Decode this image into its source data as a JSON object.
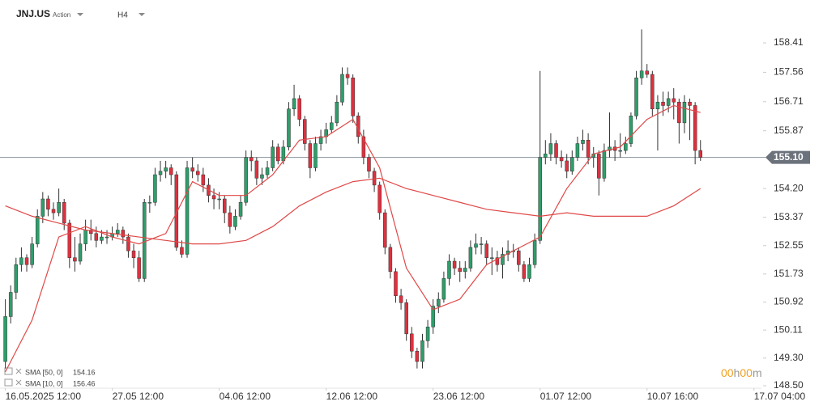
{
  "chart_data": {
    "type": "candlestick",
    "title": "JNJ.US",
    "subtitle": "Action",
    "timeframe": "H4",
    "up_color": "#2e9e6b",
    "down_color": "#e0303e",
    "candles": [
      [
        149.2,
        151.0,
        149.0,
        150.5
      ],
      [
        150.5,
        151.4,
        150.3,
        151.2
      ],
      [
        151.2,
        152.2,
        151.0,
        152.0
      ],
      [
        152.0,
        152.5,
        151.8,
        152.2
      ],
      [
        152.2,
        152.3,
        151.8,
        152.0
      ],
      [
        152.0,
        152.8,
        151.9,
        152.6
      ],
      [
        152.6,
        153.6,
        152.5,
        153.4
      ],
      [
        153.4,
        154.1,
        153.2,
        153.9
      ],
      [
        153.9,
        154.0,
        153.4,
        153.6
      ],
      [
        153.6,
        153.8,
        153.3,
        153.5
      ],
      [
        153.5,
        154.2,
        153.4,
        153.8
      ],
      [
        153.8,
        153.9,
        153.0,
        153.2
      ],
      [
        153.2,
        153.3,
        151.9,
        152.2
      ],
      [
        152.2,
        152.8,
        151.8,
        152.1
      ],
      [
        152.1,
        152.9,
        152.0,
        152.6
      ],
      [
        152.6,
        153.3,
        152.4,
        153.0
      ],
      [
        153.0,
        153.3,
        152.7,
        152.9
      ],
      [
        152.9,
        153.1,
        152.5,
        152.7
      ],
      [
        152.7,
        153.0,
        152.6,
        152.8
      ],
      [
        152.8,
        153.0,
        152.6,
        152.8
      ],
      [
        152.8,
        153.1,
        152.7,
        152.9
      ],
      [
        152.9,
        153.2,
        152.8,
        153.0
      ],
      [
        153.0,
        153.1,
        152.6,
        152.8
      ],
      [
        152.8,
        152.9,
        152.2,
        152.4
      ],
      [
        152.4,
        152.6,
        151.9,
        152.2
      ],
      [
        152.2,
        152.4,
        151.5,
        151.6
      ],
      [
        151.6,
        153.9,
        151.5,
        153.8
      ],
      [
        153.8,
        154.0,
        153.5,
        153.8
      ],
      [
        153.8,
        154.8,
        153.7,
        154.6
      ],
      [
        154.6,
        155.0,
        154.4,
        154.7
      ],
      [
        154.7,
        155.0,
        154.5,
        154.8
      ],
      [
        154.8,
        154.9,
        154.3,
        154.6
      ],
      [
        154.6,
        154.7,
        152.4,
        152.5
      ],
      [
        152.5,
        152.7,
        152.2,
        152.3
      ],
      [
        152.3,
        155.0,
        152.2,
        154.8
      ],
      [
        154.8,
        155.1,
        154.5,
        154.7
      ],
      [
        154.7,
        154.9,
        154.4,
        154.6
      ],
      [
        154.6,
        154.8,
        154.1,
        154.3
      ],
      [
        154.3,
        154.5,
        153.8,
        154.0
      ],
      [
        154.0,
        154.2,
        153.6,
        153.9
      ],
      [
        153.9,
        154.1,
        153.6,
        153.9
      ],
      [
        153.9,
        154.0,
        153.2,
        153.5
      ],
      [
        153.5,
        153.7,
        152.9,
        153.1
      ],
      [
        153.1,
        153.6,
        153.0,
        153.4
      ],
      [
        153.4,
        154.0,
        153.3,
        153.8
      ],
      [
        153.8,
        155.3,
        153.7,
        155.1
      ],
      [
        155.1,
        155.3,
        154.7,
        155.0
      ],
      [
        155.0,
        155.1,
        154.3,
        154.5
      ],
      [
        154.5,
        154.8,
        154.3,
        154.6
      ],
      [
        154.6,
        155.0,
        154.5,
        154.8
      ],
      [
        154.8,
        155.6,
        154.7,
        155.4
      ],
      [
        155.4,
        155.5,
        154.9,
        155.0
      ],
      [
        155.0,
        155.6,
        154.9,
        155.4
      ],
      [
        155.4,
        156.7,
        155.3,
        156.5
      ],
      [
        156.5,
        157.2,
        156.3,
        156.8
      ],
      [
        156.8,
        156.9,
        156.0,
        156.2
      ],
      [
        156.2,
        156.3,
        155.3,
        155.5
      ],
      [
        155.5,
        155.6,
        154.5,
        154.8
      ],
      [
        154.8,
        155.7,
        154.7,
        155.5
      ],
      [
        155.5,
        155.9,
        155.3,
        155.7
      ],
      [
        155.7,
        156.1,
        155.5,
        155.9
      ],
      [
        155.9,
        156.3,
        155.8,
        156.1
      ],
      [
        156.1,
        156.9,
        156.0,
        156.7
      ],
      [
        156.7,
        157.7,
        156.6,
        157.5
      ],
      [
        157.5,
        157.7,
        157.2,
        157.4
      ],
      [
        157.4,
        157.5,
        156.1,
        156.3
      ],
      [
        156.3,
        156.4,
        155.5,
        155.7
      ],
      [
        155.7,
        155.9,
        154.9,
        155.1
      ],
      [
        155.1,
        155.2,
        154.5,
        154.7
      ],
      [
        154.7,
        154.8,
        154.1,
        154.3
      ],
      [
        154.3,
        154.4,
        153.3,
        153.5
      ],
      [
        153.5,
        153.6,
        152.3,
        152.5
      ],
      [
        152.5,
        152.6,
        151.6,
        151.8
      ],
      [
        151.8,
        151.9,
        150.9,
        151.1
      ],
      [
        151.1,
        151.3,
        150.7,
        150.9
      ],
      [
        150.9,
        151.0,
        149.8,
        150.0
      ],
      [
        150.0,
        150.2,
        149.3,
        149.5
      ],
      [
        149.5,
        149.6,
        149.0,
        149.2
      ],
      [
        149.2,
        150.0,
        149.0,
        149.8
      ],
      [
        149.8,
        150.4,
        149.6,
        150.2
      ],
      [
        150.2,
        151.0,
        150.0,
        150.8
      ],
      [
        150.8,
        151.2,
        150.6,
        151.0
      ],
      [
        151.0,
        151.8,
        150.9,
        151.6
      ],
      [
        151.6,
        152.3,
        151.4,
        152.1
      ],
      [
        152.1,
        152.2,
        151.7,
        151.9
      ],
      [
        151.9,
        152.1,
        151.5,
        151.8
      ],
      [
        151.8,
        152.1,
        151.6,
        151.9
      ],
      [
        151.9,
        152.7,
        151.8,
        152.5
      ],
      [
        152.5,
        152.9,
        152.3,
        152.6
      ],
      [
        152.6,
        152.8,
        152.3,
        152.6
      ],
      [
        152.6,
        152.7,
        152.0,
        152.2
      ],
      [
        152.2,
        152.5,
        151.7,
        152.2
      ],
      [
        152.2,
        152.4,
        151.8,
        152.0
      ],
      [
        152.0,
        152.5,
        151.6,
        152.3
      ],
      [
        152.3,
        152.7,
        152.1,
        152.4
      ],
      [
        152.4,
        152.6,
        152.2,
        152.4
      ],
      [
        152.4,
        152.5,
        151.8,
        152.0
      ],
      [
        152.0,
        152.1,
        151.5,
        151.6
      ],
      [
        151.6,
        152.2,
        151.5,
        152.0
      ],
      [
        152.0,
        152.9,
        151.9,
        152.7
      ],
      [
        152.7,
        157.6,
        152.6,
        155.1
      ],
      [
        155.1,
        155.6,
        154.9,
        155.2
      ],
      [
        155.2,
        155.8,
        155.0,
        155.5
      ],
      [
        155.5,
        155.6,
        154.9,
        155.1
      ],
      [
        155.1,
        155.3,
        154.8,
        155.0
      ],
      [
        155.0,
        155.2,
        154.5,
        154.7
      ],
      [
        154.7,
        155.3,
        154.6,
        155.1
      ],
      [
        155.1,
        155.7,
        155.0,
        155.5
      ],
      [
        155.5,
        155.9,
        155.3,
        155.6
      ],
      [
        155.6,
        155.8,
        154.9,
        155.1
      ],
      [
        155.1,
        155.4,
        154.8,
        155.2
      ],
      [
        155.2,
        155.3,
        154.0,
        154.5
      ],
      [
        154.5,
        155.5,
        154.4,
        155.3
      ],
      [
        155.3,
        156.4,
        155.1,
        155.4
      ],
      [
        155.4,
        155.6,
        155.0,
        155.3
      ],
      [
        155.3,
        155.8,
        155.1,
        155.3
      ],
      [
        155.3,
        155.7,
        155.2,
        155.5
      ],
      [
        155.5,
        156.4,
        155.4,
        156.3
      ],
      [
        156.3,
        157.6,
        156.2,
        157.4
      ],
      [
        157.4,
        158.8,
        157.2,
        157.6
      ],
      [
        157.6,
        157.8,
        157.4,
        157.5
      ],
      [
        157.5,
        157.6,
        156.3,
        156.5
      ],
      [
        156.5,
        156.9,
        155.3,
        156.7
      ],
      [
        156.7,
        157.0,
        156.3,
        156.6
      ],
      [
        156.6,
        157.0,
        156.4,
        156.8
      ],
      [
        156.8,
        157.1,
        156.2,
        156.7
      ],
      [
        156.7,
        156.8,
        155.5,
        156.1
      ],
      [
        156.1,
        156.9,
        155.8,
        156.7
      ],
      [
        156.7,
        156.8,
        155.6,
        156.6
      ],
      [
        156.6,
        156.7,
        154.9,
        155.3
      ],
      [
        155.3,
        155.6,
        155.0,
        155.1
      ]
    ],
    "series": [
      {
        "name": "SMA [50, 0]",
        "last": 154.16,
        "color": "#e04848",
        "x": [
          0,
          5,
          10,
          15,
          20,
          25,
          30,
          35,
          40,
          45,
          50,
          55,
          60,
          65,
          70,
          75,
          80,
          85,
          90,
          95,
          100,
          105,
          110,
          115,
          120,
          125,
          130
        ],
        "values": [
          153.7,
          153.4,
          153.2,
          153.0,
          152.9,
          152.8,
          152.7,
          152.6,
          152.6,
          152.7,
          153.1,
          153.7,
          154.1,
          154.4,
          154.5,
          154.2,
          154.0,
          153.8,
          153.6,
          153.5,
          153.4,
          153.5,
          153.4,
          153.4,
          153.4,
          153.7,
          154.2
        ]
      },
      {
        "name": "SMA [10, 0]",
        "last": 156.46,
        "color": "#e04848",
        "x": [
          0,
          5,
          10,
          15,
          20,
          25,
          30,
          35,
          40,
          45,
          50,
          55,
          60,
          65,
          70,
          75,
          80,
          85,
          90,
          95,
          100,
          105,
          110,
          115,
          120,
          125,
          130
        ],
        "values": [
          148.9,
          150.4,
          152.8,
          153.1,
          152.8,
          152.6,
          152.9,
          154.4,
          154.0,
          154.0,
          154.6,
          155.6,
          155.7,
          156.2,
          154.8,
          151.9,
          150.7,
          151.0,
          152.0,
          152.4,
          152.8,
          154.2,
          155.2,
          155.4,
          156.2,
          156.6,
          156.4
        ]
      }
    ],
    "current_price": {
      "value": 155.1,
      "label": "155.10"
    },
    "countdown": [
      "00",
      "h",
      "00",
      "m"
    ],
    "xlim": [
      -1,
      141.4
    ],
    "xticks": [
      {
        "value": 0,
        "label": "16.05.2025 12:00"
      },
      {
        "value": 20,
        "label": "27.05 12:00"
      },
      {
        "value": 40,
        "label": "04.06 12:00"
      },
      {
        "value": 60,
        "label": "12.06 12:00"
      },
      {
        "value": 80,
        "label": "23.06 12:00"
      },
      {
        "value": 100,
        "label": "01.07 12:00"
      },
      {
        "value": 120,
        "label": "10.07 16:00"
      },
      {
        "value": 140,
        "label": "17.07 04:00"
      }
    ],
    "ylim": [
      148.43,
      159.65
    ],
    "yticks": [
      158.41,
      157.56,
      156.71,
      155.87,
      {
        "value": 154.2,
        "label": "154.20"
      },
      153.37,
      152.55,
      151.73,
      150.92,
      150.11,
      {
        "value": 149.3,
        "label": "149.30"
      },
      {
        "value": 148.5,
        "label": "148.50"
      }
    ]
  }
}
